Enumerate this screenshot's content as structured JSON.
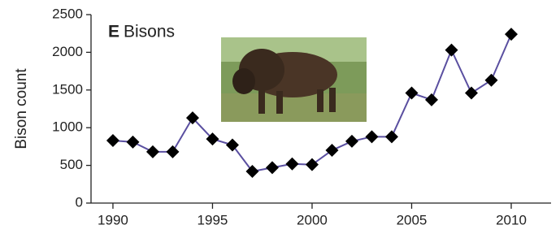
{
  "chart_data": {
    "type": "line",
    "panel_label": "E",
    "title": "Bisons",
    "ylabel": "Bison count",
    "x": [
      1990,
      1991,
      1992,
      1993,
      1994,
      1995,
      1996,
      1997,
      1998,
      1999,
      2000,
      2001,
      2002,
      2003,
      2004,
      2005,
      2006,
      2007,
      2008,
      2009,
      2010
    ],
    "series": [
      {
        "name": "Bison count",
        "color": "#5a4fa0",
        "marker_color": "#000000",
        "values": [
          830,
          810,
          680,
          680,
          1130,
          850,
          770,
          420,
          470,
          520,
          510,
          700,
          820,
          880,
          880,
          1460,
          1370,
          2030,
          1460,
          1630,
          2240
        ]
      }
    ],
    "xlim": [
      1988.9,
      2012
    ],
    "xticks": [
      1990,
      1995,
      2000,
      2005,
      2010
    ],
    "ylim": [
      0,
      2500
    ],
    "yticks": [
      0,
      500,
      1000,
      1500,
      2000,
      2500
    ],
    "grid": false
  }
}
